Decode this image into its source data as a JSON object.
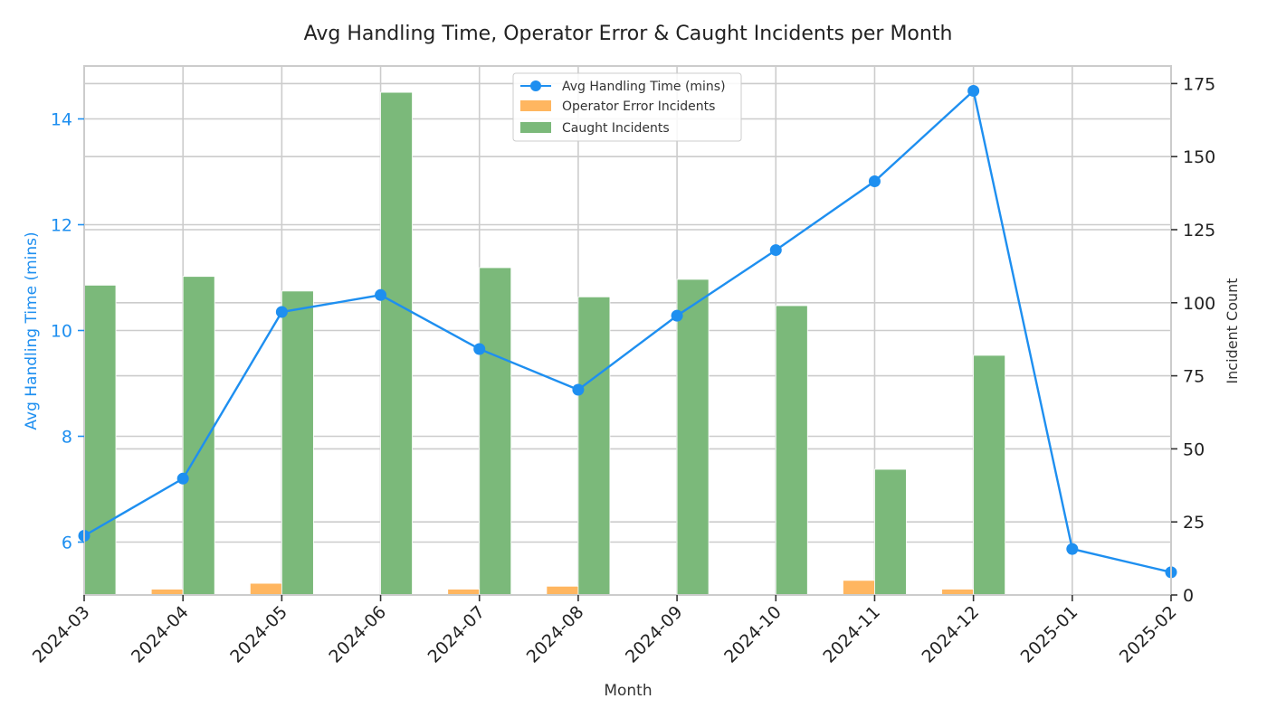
{
  "chart_data": {
    "type": "bar+line",
    "title": "Avg Handling Time, Operator Error & Caught Incidents per Month",
    "xlabel": "Month",
    "ylabel_left": "Avg Handling Time (mins)",
    "ylabel_right": "Incident Count",
    "categories": [
      "2024-03",
      "2024-04",
      "2024-05",
      "2024-06",
      "2024-07",
      "2024-08",
      "2024-09",
      "2024-10",
      "2024-11",
      "2024-12",
      "2025-01",
      "2025-02"
    ],
    "left_axis": {
      "ylim": [
        5.0,
        15.0
      ],
      "ticks": [
        6,
        8,
        10,
        12,
        14
      ]
    },
    "right_axis": {
      "ylim": [
        0,
        181
      ],
      "ticks": [
        0,
        25,
        50,
        75,
        100,
        125,
        150,
        175
      ]
    },
    "series": [
      {
        "name": "Avg Handling Time (mins)",
        "kind": "line",
        "axis": "left",
        "color": "#1e8ff0",
        "values": [
          6.12,
          7.2,
          10.35,
          10.67,
          9.65,
          8.88,
          10.28,
          11.52,
          12.82,
          14.53,
          5.87,
          5.43
        ]
      },
      {
        "name": "Operator Error Incidents",
        "kind": "bar",
        "axis": "right",
        "color": "#ffb660",
        "values": [
          0,
          2,
          4,
          0,
          2,
          3,
          0,
          0,
          5,
          2,
          0,
          0
        ]
      },
      {
        "name": "Caught Incidents",
        "kind": "bar",
        "axis": "right",
        "color": "#7bb97a",
        "values": [
          106,
          109,
          104,
          172,
          112,
          102,
          108,
          99,
          43,
          82,
          0,
          0
        ]
      }
    ],
    "grid": true,
    "legend_position": "top-center"
  }
}
